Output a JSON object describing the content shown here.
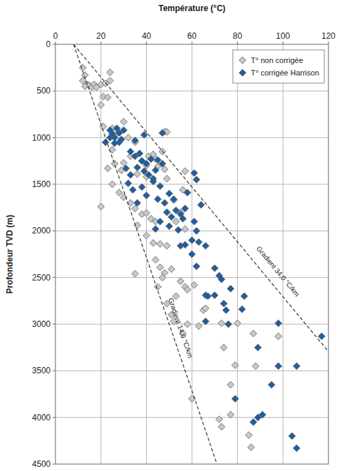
{
  "chart_data": {
    "type": "scatter",
    "x_label": "Température (°C)",
    "y_label": "Profondeur TVD (m)",
    "xlim": [
      0,
      120
    ],
    "ylim": [
      4500,
      0
    ],
    "xticks": [
      0,
      20,
      40,
      60,
      80,
      100,
      120
    ],
    "yticks": [
      0,
      500,
      1000,
      1500,
      2000,
      2500,
      3000,
      3500,
      4000,
      4500
    ],
    "grid": true,
    "legend": "upper right",
    "series": [
      {
        "name": "T° non corrigée",
        "color": "#c8c8c8",
        "marker": "diamond",
        "x": [
          12,
          13,
          12,
          14,
          13,
          15,
          16,
          17,
          18,
          20,
          22,
          24,
          24,
          20,
          21,
          23,
          21,
          25,
          30,
          27,
          32,
          35,
          25,
          23,
          26,
          29,
          30,
          33,
          38,
          40,
          41,
          43,
          44,
          36,
          40,
          45,
          48,
          49,
          47,
          25,
          28,
          30,
          20,
          33,
          35,
          38,
          40,
          42,
          44,
          36,
          40,
          43,
          46,
          49,
          53,
          55,
          57,
          52,
          56,
          57,
          44,
          46,
          47,
          45,
          48,
          51,
          53,
          55,
          35,
          49,
          51,
          52,
          57,
          58,
          61,
          58,
          56,
          63,
          65,
          66,
          73,
          80,
          74,
          79,
          87,
          88,
          60,
          72,
          73,
          77,
          77,
          85,
          86,
          98,
          48,
          49
        ],
        "values": [
          250,
          330,
          390,
          430,
          450,
          440,
          460,
          430,
          460,
          430,
          420,
          300,
          390,
          650,
          560,
          570,
          880,
          900,
          830,
          950,
          1000,
          1050,
          1130,
          1330,
          1280,
          1350,
          1270,
          1200,
          1250,
          1300,
          1200,
          1180,
          1230,
          1390,
          1420,
          1310,
          1340,
          1440,
          1150,
          1500,
          1590,
          1640,
          1740,
          1700,
          1760,
          1820,
          1810,
          1870,
          1900,
          1940,
          2050,
          2130,
          2140,
          2160,
          1900,
          1800,
          1360,
          1670,
          1560,
          1980,
          2310,
          2390,
          2500,
          2600,
          2450,
          2410,
          2700,
          2540,
          2460,
          2780,
          2900,
          2970,
          2600,
          2630,
          2580,
          3000,
          3100,
          3020,
          2850,
          2830,
          2990,
          2990,
          3250,
          3440,
          3100,
          3450,
          3800,
          4020,
          4100,
          3970,
          3650,
          4190,
          4320,
          3130,
          935,
          940
        ]
      },
      {
        "name": "T° corrigée Harrison",
        "color": "#1f5fa0",
        "marker": "diamond",
        "x": [
          24,
          25,
          26,
          27,
          28,
          28,
          29,
          24,
          26,
          30,
          22,
          39,
          47,
          33,
          35,
          37,
          38,
          40,
          42,
          45,
          47,
          36,
          39,
          41,
          44,
          43,
          46,
          31,
          32,
          34,
          38,
          36,
          40,
          45,
          48,
          50,
          52,
          49,
          51,
          53,
          55,
          57,
          46,
          50,
          54,
          56,
          61,
          62,
          64,
          61,
          62,
          55,
          57,
          60,
          63,
          66,
          60,
          62,
          70,
          72,
          73,
          66,
          67,
          70,
          77,
          83,
          82,
          74,
          75,
          66,
          76,
          98,
          117,
          89,
          98,
          106,
          95,
          79,
          89,
          91,
          87,
          104,
          106,
          43,
          35,
          33,
          44,
          58
        ],
        "values": [
          920,
          960,
          1000,
          900,
          950,
          1050,
          1020,
          1000,
          1060,
          920,
          1050,
          970,
          950,
          1150,
          1200,
          1170,
          1250,
          1280,
          1230,
          1240,
          1280,
          1320,
          1360,
          1400,
          1350,
          1470,
          1520,
          1330,
          1490,
          1560,
          1530,
          1700,
          1620,
          1660,
          1700,
          1600,
          1660,
          1800,
          1850,
          1780,
          1820,
          1760,
          1900,
          1950,
          1990,
          1870,
          1380,
          1450,
          1720,
          1900,
          2000,
          2160,
          2150,
          2100,
          2120,
          2160,
          2250,
          2380,
          2400,
          2480,
          2520,
          2690,
          2700,
          2690,
          2620,
          2700,
          2840,
          2780,
          2850,
          2970,
          3000,
          2990,
          3130,
          3250,
          3450,
          3450,
          3650,
          3800,
          4000,
          3970,
          4050,
          4200,
          4330,
          1440,
          1030,
          1400,
          1980,
          1590
        ]
      }
    ],
    "reference_lines": [
      {
        "type": "line",
        "label": "Gradient 34,0 °C/km",
        "color": "#333333",
        "line_style": "dashed",
        "x": [
          8,
          120
        ],
        "values": [
          0,
          3294
        ],
        "label_x": 97,
        "label_y": 2450
      },
      {
        "type": "line",
        "label": "Gradient 14,0 °C/km",
        "color": "#333333",
        "line_style": "dashed",
        "x": [
          8,
          71
        ],
        "values": [
          0,
          4500
        ],
        "label_x": 54,
        "label_y": 3050
      }
    ]
  }
}
